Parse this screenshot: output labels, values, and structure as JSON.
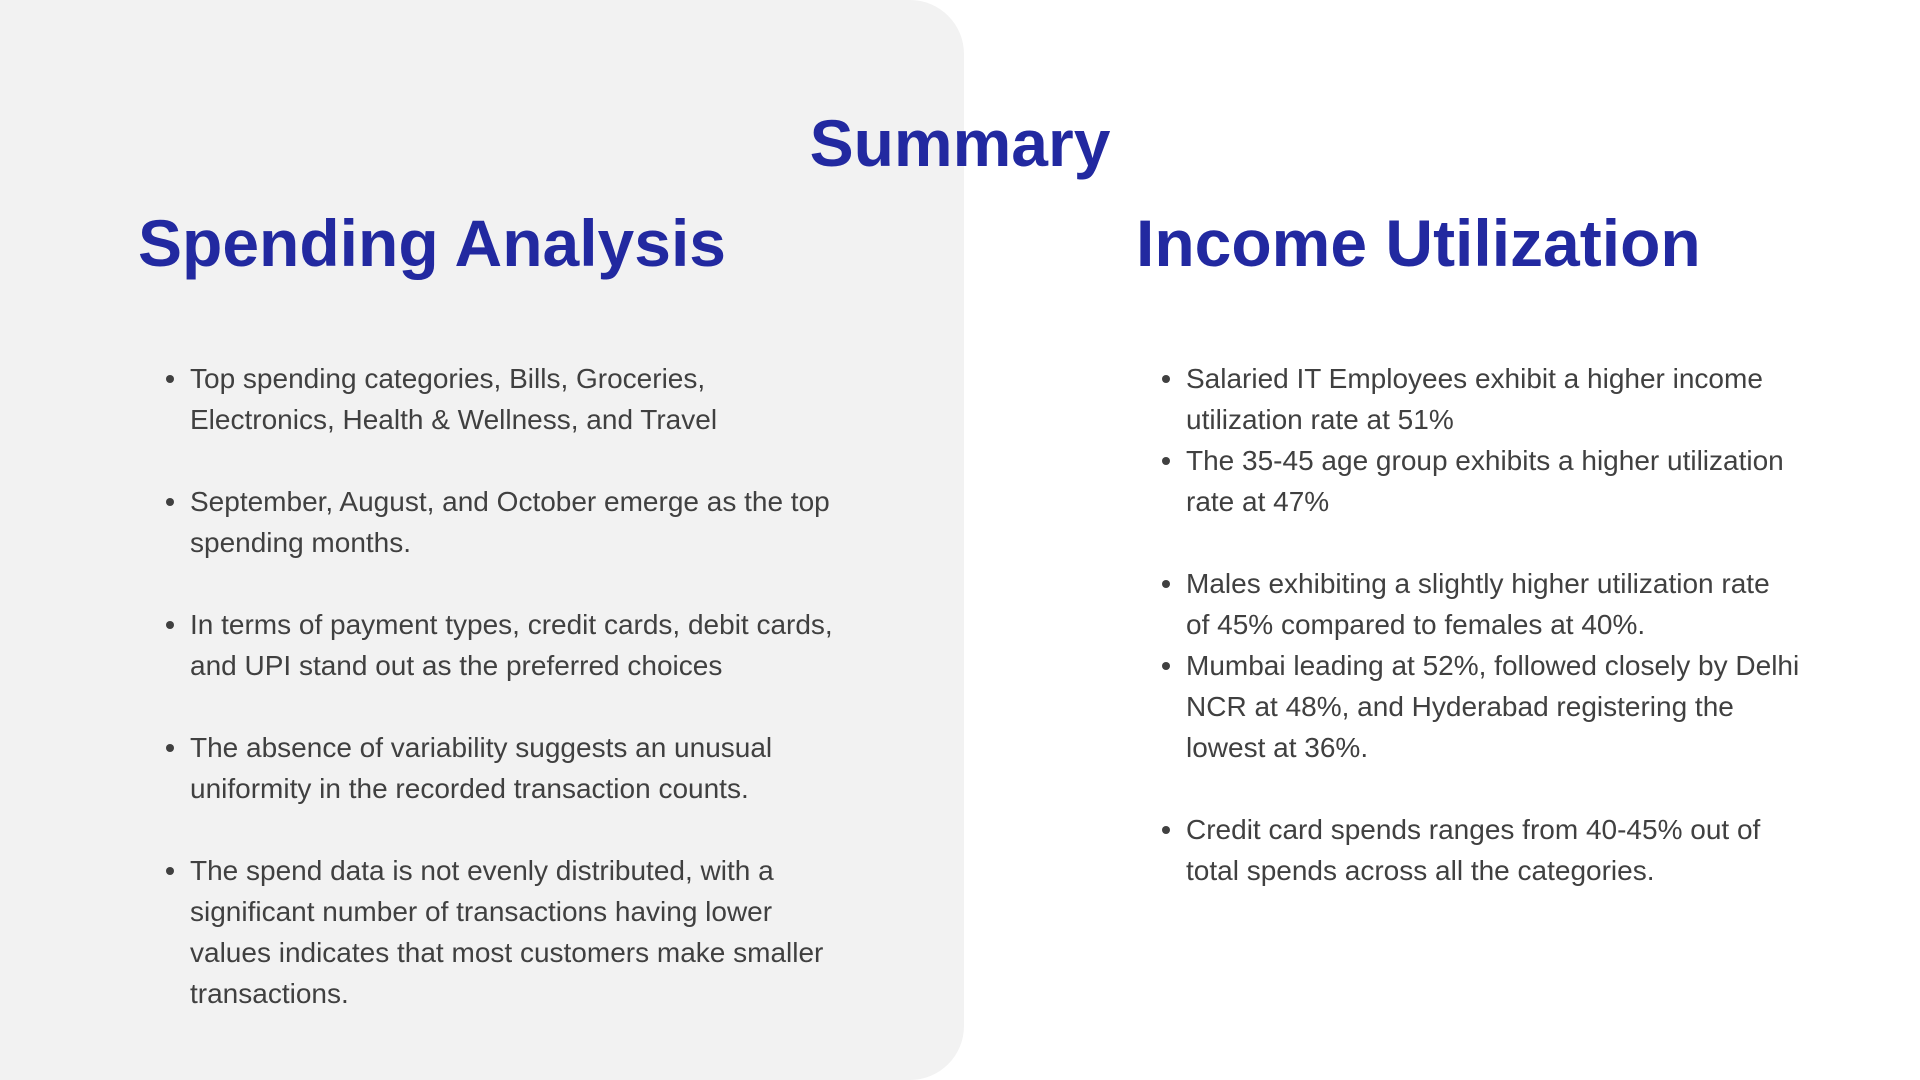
{
  "title": "Summary",
  "spending": {
    "heading": "Spending Analysis",
    "items": [
      "Top spending categories, Bills, Groceries, Electronics, Health & Wellness, and Travel",
      "September, August, and October emerge as the top spending months.",
      "In terms of payment types, credit cards, debit cards, and UPI stand out as the preferred choices",
      "The absence of variability suggests an unusual uniformity in the recorded transaction counts.",
      "The spend data is not evenly distributed, with a significant number of transactions having lower values indicates that most customers make smaller transactions."
    ]
  },
  "income": {
    "heading": "Income Utilization",
    "items": [
      "Salaried IT Employees exhibit a higher income utilization rate at 51%",
      "The 35-45 age group exhibits a higher utilization rate at 47%",
      "Males exhibiting a slightly higher utilization rate of 45% compared to females at 40%.",
      "Mumbai leading at 52%, followed closely by Delhi NCR at 48%, and Hyderabad registering the lowest at 36%.",
      "Credit card spends ranges from 40-45% out of total spends across all the categories."
    ]
  },
  "colors": {
    "heading": "#2229a0",
    "body_text": "#404040",
    "panel_background": "#f2f2f2"
  }
}
